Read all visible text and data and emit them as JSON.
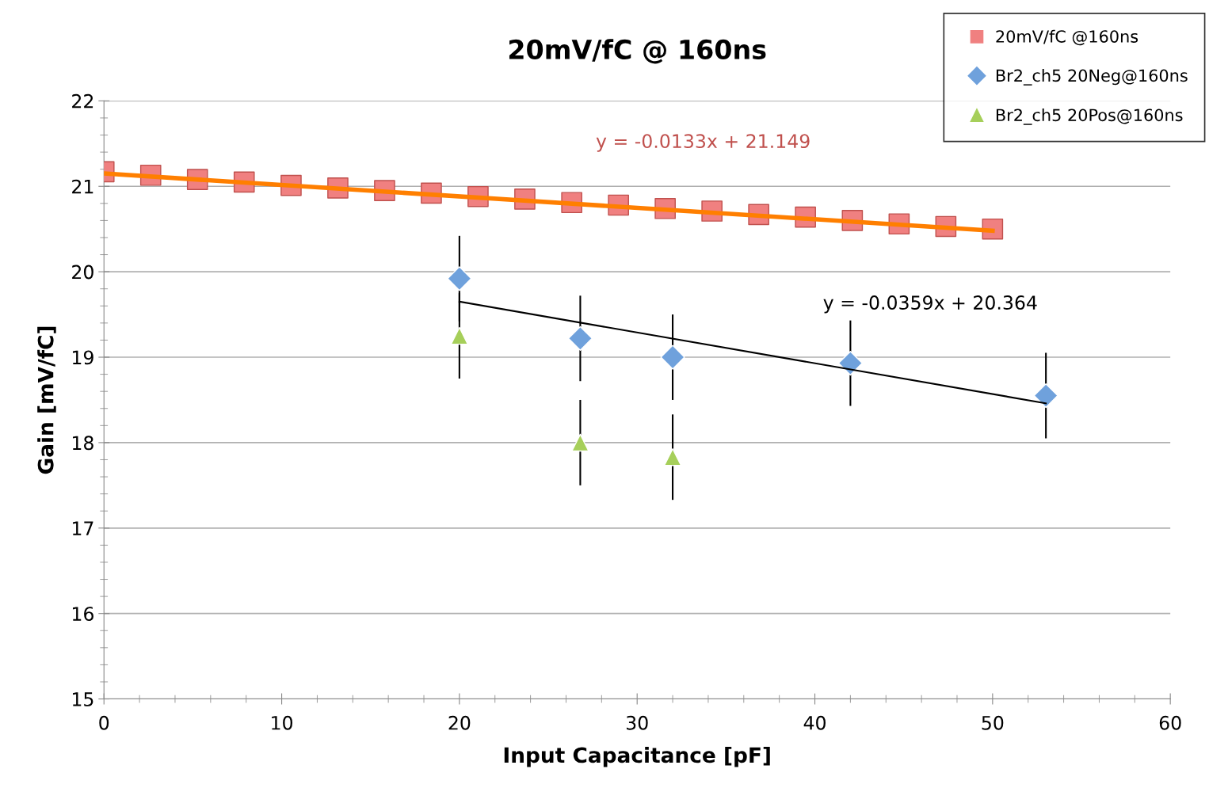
{
  "chart_data": {
    "type": "scatter",
    "title": "20mV/fC @ 160ns",
    "xlabel": "Input Capacitance [pF]",
    "ylabel": "Gain [mV/fC]",
    "xlim": [
      0,
      60
    ],
    "ylim": [
      15,
      22
    ],
    "xticks": [
      0,
      {
        "value": 2,
        "label": null
      },
      {
        "value": 4,
        "label": null
      },
      {
        "value": 6,
        "label": null
      },
      {
        "value": 8,
        "label": null
      },
      10,
      {
        "value": 12,
        "label": null
      },
      {
        "value": 14,
        "label": null
      },
      {
        "value": 16,
        "label": null
      },
      {
        "value": 18,
        "label": null
      },
      20,
      {
        "value": 22,
        "label": null
      },
      {
        "value": 24,
        "label": null
      },
      {
        "value": 26,
        "label": null
      },
      {
        "value": 28,
        "label": null
      },
      30,
      {
        "value": 32,
        "label": null
      },
      {
        "value": 34,
        "label": null
      },
      {
        "value": 36,
        "label": null
      },
      {
        "value": 38,
        "label": null
      },
      40,
      {
        "value": 42,
        "label": null
      },
      {
        "value": 44,
        "label": null
      },
      {
        "value": 46,
        "label": null
      },
      {
        "value": 48,
        "label": null
      },
      50,
      {
        "value": 52,
        "label": null
      },
      {
        "value": 54,
        "label": null
      },
      {
        "value": 56,
        "label": null
      },
      {
        "value": 58,
        "label": null
      },
      60
    ],
    "yticks": [
      15,
      {
        "value": 15.2,
        "label": null
      },
      {
        "value": 15.4,
        "label": null
      },
      {
        "value": 15.6,
        "label": null
      },
      {
        "value": 15.8,
        "label": null
      },
      16,
      {
        "value": 16.2,
        "label": null
      },
      {
        "value": 16.4,
        "label": null
      },
      {
        "value": 16.6,
        "label": null
      },
      {
        "value": 16.8,
        "label": null
      },
      17,
      {
        "value": 17.2,
        "label": null
      },
      {
        "value": 17.4,
        "label": null
      },
      {
        "value": 17.6,
        "label": null
      },
      {
        "value": 17.8,
        "label": null
      },
      18,
      {
        "value": 18.2,
        "label": null
      },
      {
        "value": 18.4,
        "label": null
      },
      {
        "value": 18.6,
        "label": null
      },
      {
        "value": 18.8,
        "label": null
      },
      19,
      {
        "value": 19.2,
        "label": null
      },
      {
        "value": 19.4,
        "label": null
      },
      {
        "value": 19.6,
        "label": null
      },
      {
        "value": 19.8,
        "label": null
      },
      20,
      {
        "value": 20.2,
        "label": null
      },
      {
        "value": 20.4,
        "label": null
      },
      {
        "value": 20.6,
        "label": null
      },
      {
        "value": 20.8,
        "label": null
      },
      21,
      {
        "value": 21.2,
        "label": null
      },
      {
        "value": 21.4,
        "label": null
      },
      {
        "value": 21.6,
        "label": null
      },
      {
        "value": 21.8,
        "label": null
      },
      22
    ],
    "grid": "y",
    "legend": "top right",
    "series": [
      {
        "name": "20mV/fC @160ns",
        "color": "#f08080",
        "marker": "square",
        "x": [
          0,
          2.63,
          5.26,
          7.89,
          10.53,
          13.16,
          15.79,
          18.42,
          21.05,
          23.68,
          26.32,
          28.95,
          31.58,
          34.21,
          36.84,
          39.47,
          42.11,
          44.74,
          47.37,
          50
        ],
        "values": [
          21.17,
          21.13,
          21.08,
          21.05,
          21.01,
          20.98,
          20.95,
          20.92,
          20.88,
          20.85,
          20.81,
          20.78,
          20.74,
          20.71,
          20.67,
          20.64,
          20.6,
          20.56,
          20.53,
          20.5
        ]
      },
      {
        "name": "Br2_ch5 20Neg@160ns",
        "color": "#6fa1dc",
        "marker": "diamond",
        "x": [
          20,
          26.8,
          32,
          42,
          53
        ],
        "values": [
          19.92,
          19.22,
          19.0,
          18.93,
          18.55
        ],
        "errors": [
          0.5,
          0.5,
          0.5,
          0.5,
          0.5
        ]
      },
      {
        "name": "Br2_ch5 20Pos@160ns",
        "color": "#a6cf5a",
        "marker": "triangle",
        "x": [
          20,
          26.8,
          32
        ],
        "values": [
          19.25,
          18.0,
          17.83
        ],
        "errors": [
          0.5,
          0.5,
          0.5
        ]
      },
      {
        "type": "line",
        "color": "#ff7f00",
        "marker": "none",
        "x": [
          0,
          50
        ],
        "values": [
          21.15,
          20.48
        ]
      },
      {
        "type": "line",
        "color": "#000000",
        "marker": "none",
        "x": [
          20,
          53
        ],
        "values": [
          19.65,
          18.46
        ]
      }
    ],
    "annotations": [
      "y = -0.0133x + 21.149",
      "y = -0.0359x + 20.364"
    ]
  }
}
